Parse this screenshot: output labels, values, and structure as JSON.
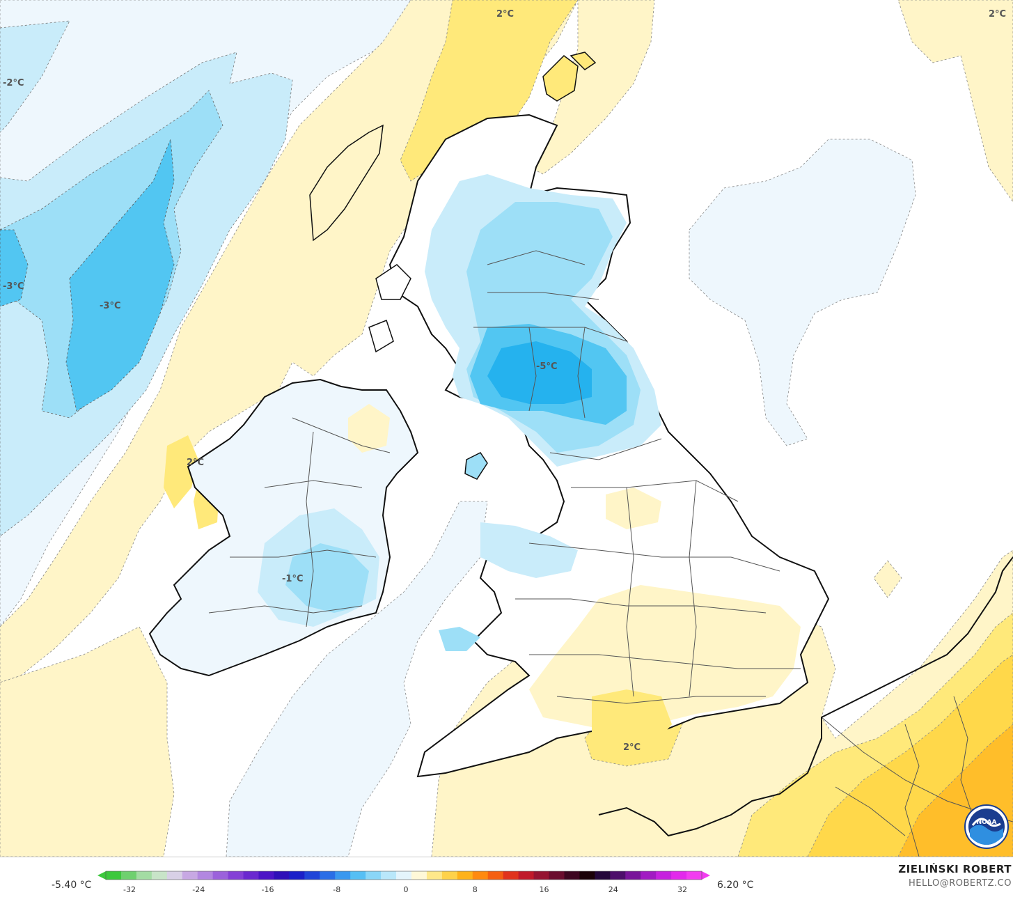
{
  "map": {
    "contour_labels": [
      "2°C",
      "2°C",
      "-2°C",
      "-3°C",
      "-3°C",
      "-5°C",
      "2°C",
      "-1°C",
      "2°C"
    ],
    "colors": {
      "sea_white": "#ffffff",
      "pale_blue": "#eef7fd",
      "light_blue": "#c9ecfa",
      "mid_blue": "#9ddff7",
      "strong_blue": "#52c6f2",
      "deep_blue": "#25b2ee",
      "pale_yellow": "#fff5c8",
      "yellow": "#ffe97a",
      "gold": "#ffd84a",
      "orange": "#ffbe2a",
      "coastline": "#111111",
      "borders": "#555555"
    }
  },
  "colorbar": {
    "min_label": "-5.40 °C",
    "max_label": "6.20 °C",
    "ticks": [
      "-32",
      "-24",
      "-16",
      "-8",
      "0",
      "8",
      "16",
      "24",
      "32"
    ],
    "colors": [
      "#3cc83c",
      "#6fd06f",
      "#a3dca3",
      "#c8e4c8",
      "#d8d0e6",
      "#c7a8e3",
      "#b287e0",
      "#9b62db",
      "#8440d6",
      "#6a28cf",
      "#4c14c6",
      "#2f0fb8",
      "#1a20c8",
      "#1f45d8",
      "#2a6ee6",
      "#3a98ef",
      "#56bff4",
      "#8ad6f7",
      "#b9e7fa",
      "#e4f4fc",
      "#fff8d8",
      "#ffe88a",
      "#ffd24a",
      "#ffb21a",
      "#ff8a10",
      "#f45f12",
      "#e0331c",
      "#c01a2a",
      "#951431",
      "#6a0d2e",
      "#3d0620",
      "#1a0208",
      "#24083a",
      "#4d0e6a",
      "#781499",
      "#a11bc2",
      "#c622de",
      "#e229eb",
      "#f23cf0"
    ]
  },
  "credit": {
    "name": "ZIELIŃSKI ROBERT",
    "email": "HELLO@ROBERTZ.CO"
  },
  "logo": {
    "text": "NOAA",
    "colors": [
      "#1a3d8f",
      "#2f8fe0"
    ]
  }
}
